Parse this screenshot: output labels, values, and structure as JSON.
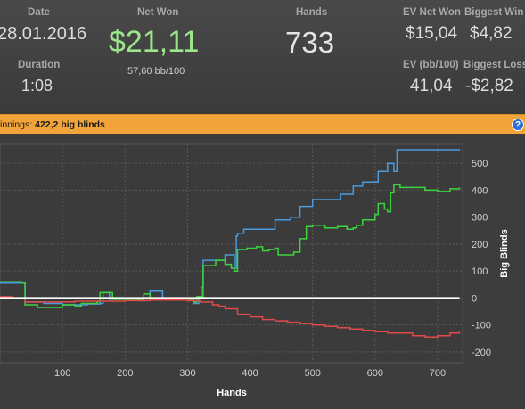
{
  "stats": {
    "date_label": "Date",
    "date_value": "28.01.2016",
    "duration_label": "Duration",
    "duration_value": "1:08",
    "net_won_label": "Net Won",
    "net_won_value": "$21,11",
    "bb_per_100": "57,60 bb/100",
    "hands_label": "Hands",
    "hands_value": "733",
    "ev_net_won_label": "EV Net Won",
    "ev_net_won_value": "$15,04",
    "biggest_win_label": "Biggest Win",
    "biggest_win_value": "$4,82",
    "ev_bb100_label": "EV (bb/100)",
    "ev_bb100_value": "41,04",
    "biggest_loss_label": "Biggest Loss",
    "biggest_loss_value": "-$2,82"
  },
  "winnings_bar": {
    "label": "innings:",
    "value": "422,2 big blinds",
    "help_icon": "question-circle-icon"
  },
  "colors": {
    "blue": "#4a9be0",
    "green": "#3ed43e",
    "red": "#e04a4a",
    "zero": "#ffffff",
    "accent": "#f2a43a"
  },
  "chart_data": {
    "type": "line",
    "xlabel": "Hands",
    "ylabel": "Big Blinds",
    "xlim": [
      0,
      740
    ],
    "ylim": [
      -240,
      570
    ],
    "x_ticks": [
      100,
      200,
      300,
      400,
      500,
      600,
      700
    ],
    "y_ticks": [
      500,
      400,
      300,
      200,
      100,
      0,
      -100,
      -200
    ],
    "grid": true,
    "series": [
      {
        "color": "blue",
        "points": [
          [
            0,
            55
          ],
          [
            40,
            50
          ],
          [
            40,
            -15
          ],
          [
            70,
            -20
          ],
          [
            100,
            -25
          ],
          [
            140,
            -22
          ],
          [
            160,
            -20
          ],
          [
            165,
            20
          ],
          [
            175,
            -5
          ],
          [
            220,
            -10
          ],
          [
            240,
            -10
          ],
          [
            240,
            25
          ],
          [
            260,
            0
          ],
          [
            310,
            -5
          ],
          [
            310,
            -20
          ],
          [
            318,
            5
          ],
          [
            322,
            40
          ],
          [
            325,
            140
          ],
          [
            355,
            140
          ],
          [
            360,
            160
          ],
          [
            370,
            160
          ],
          [
            375,
            110
          ],
          [
            378,
            230
          ],
          [
            380,
            240
          ],
          [
            390,
            255
          ],
          [
            440,
            255
          ],
          [
            440,
            290
          ],
          [
            460,
            290
          ],
          [
            465,
            300
          ],
          [
            480,
            300
          ],
          [
            480,
            340
          ],
          [
            500,
            340
          ],
          [
            500,
            365
          ],
          [
            540,
            365
          ],
          [
            545,
            385
          ],
          [
            560,
            385
          ],
          [
            565,
            415
          ],
          [
            580,
            430
          ],
          [
            600,
            430
          ],
          [
            605,
            470
          ],
          [
            615,
            470
          ],
          [
            620,
            500
          ],
          [
            630,
            470
          ],
          [
            635,
            550
          ],
          [
            735,
            545
          ]
        ]
      },
      {
        "color": "green",
        "points": [
          [
            0,
            60
          ],
          [
            35,
            55
          ],
          [
            40,
            -25
          ],
          [
            60,
            -35
          ],
          [
            100,
            -25
          ],
          [
            120,
            -30
          ],
          [
            130,
            -20
          ],
          [
            155,
            -15
          ],
          [
            160,
            20
          ],
          [
            180,
            -5
          ],
          [
            220,
            -5
          ],
          [
            230,
            15
          ],
          [
            240,
            -5
          ],
          [
            300,
            -5
          ],
          [
            310,
            -15
          ],
          [
            315,
            5
          ],
          [
            325,
            120
          ],
          [
            340,
            120
          ],
          [
            345,
            140
          ],
          [
            360,
            125
          ],
          [
            370,
            110
          ],
          [
            375,
            100
          ],
          [
            380,
            180
          ],
          [
            395,
            185
          ],
          [
            410,
            190
          ],
          [
            420,
            175
          ],
          [
            430,
            180
          ],
          [
            440,
            185
          ],
          [
            445,
            160
          ],
          [
            460,
            160
          ],
          [
            470,
            170
          ],
          [
            480,
            220
          ],
          [
            490,
            265
          ],
          [
            500,
            270
          ],
          [
            520,
            260
          ],
          [
            540,
            265
          ],
          [
            555,
            255
          ],
          [
            565,
            260
          ],
          [
            570,
            270
          ],
          [
            580,
            290
          ],
          [
            600,
            310
          ],
          [
            605,
            350
          ],
          [
            610,
            350
          ],
          [
            615,
            330
          ],
          [
            620,
            320
          ],
          [
            625,
            390
          ],
          [
            630,
            420
          ],
          [
            640,
            410
          ],
          [
            660,
            410
          ],
          [
            680,
            400
          ],
          [
            700,
            395
          ],
          [
            720,
            405
          ],
          [
            735,
            410
          ]
        ]
      },
      {
        "color": "red",
        "points": [
          [
            0,
            5
          ],
          [
            20,
            0
          ],
          [
            40,
            -15
          ],
          [
            80,
            -15
          ],
          [
            120,
            -12
          ],
          [
            160,
            -12
          ],
          [
            200,
            -10
          ],
          [
            240,
            -8
          ],
          [
            260,
            -8
          ],
          [
            290,
            -8
          ],
          [
            300,
            -10
          ],
          [
            320,
            -15
          ],
          [
            340,
            -25
          ],
          [
            350,
            -30
          ],
          [
            360,
            -40
          ],
          [
            380,
            -60
          ],
          [
            400,
            -70
          ],
          [
            420,
            -80
          ],
          [
            440,
            -85
          ],
          [
            460,
            -90
          ],
          [
            480,
            -95
          ],
          [
            500,
            -100
          ],
          [
            520,
            -105
          ],
          [
            540,
            -110
          ],
          [
            560,
            -115
          ],
          [
            580,
            -120
          ],
          [
            600,
            -125
          ],
          [
            620,
            -130
          ],
          [
            640,
            -130
          ],
          [
            660,
            -140
          ],
          [
            680,
            -145
          ],
          [
            700,
            -140
          ],
          [
            720,
            -130
          ],
          [
            735,
            -125
          ]
        ]
      },
      {
        "color": "zero",
        "points": [
          [
            0,
            0
          ],
          [
            735,
            0
          ]
        ]
      }
    ]
  }
}
